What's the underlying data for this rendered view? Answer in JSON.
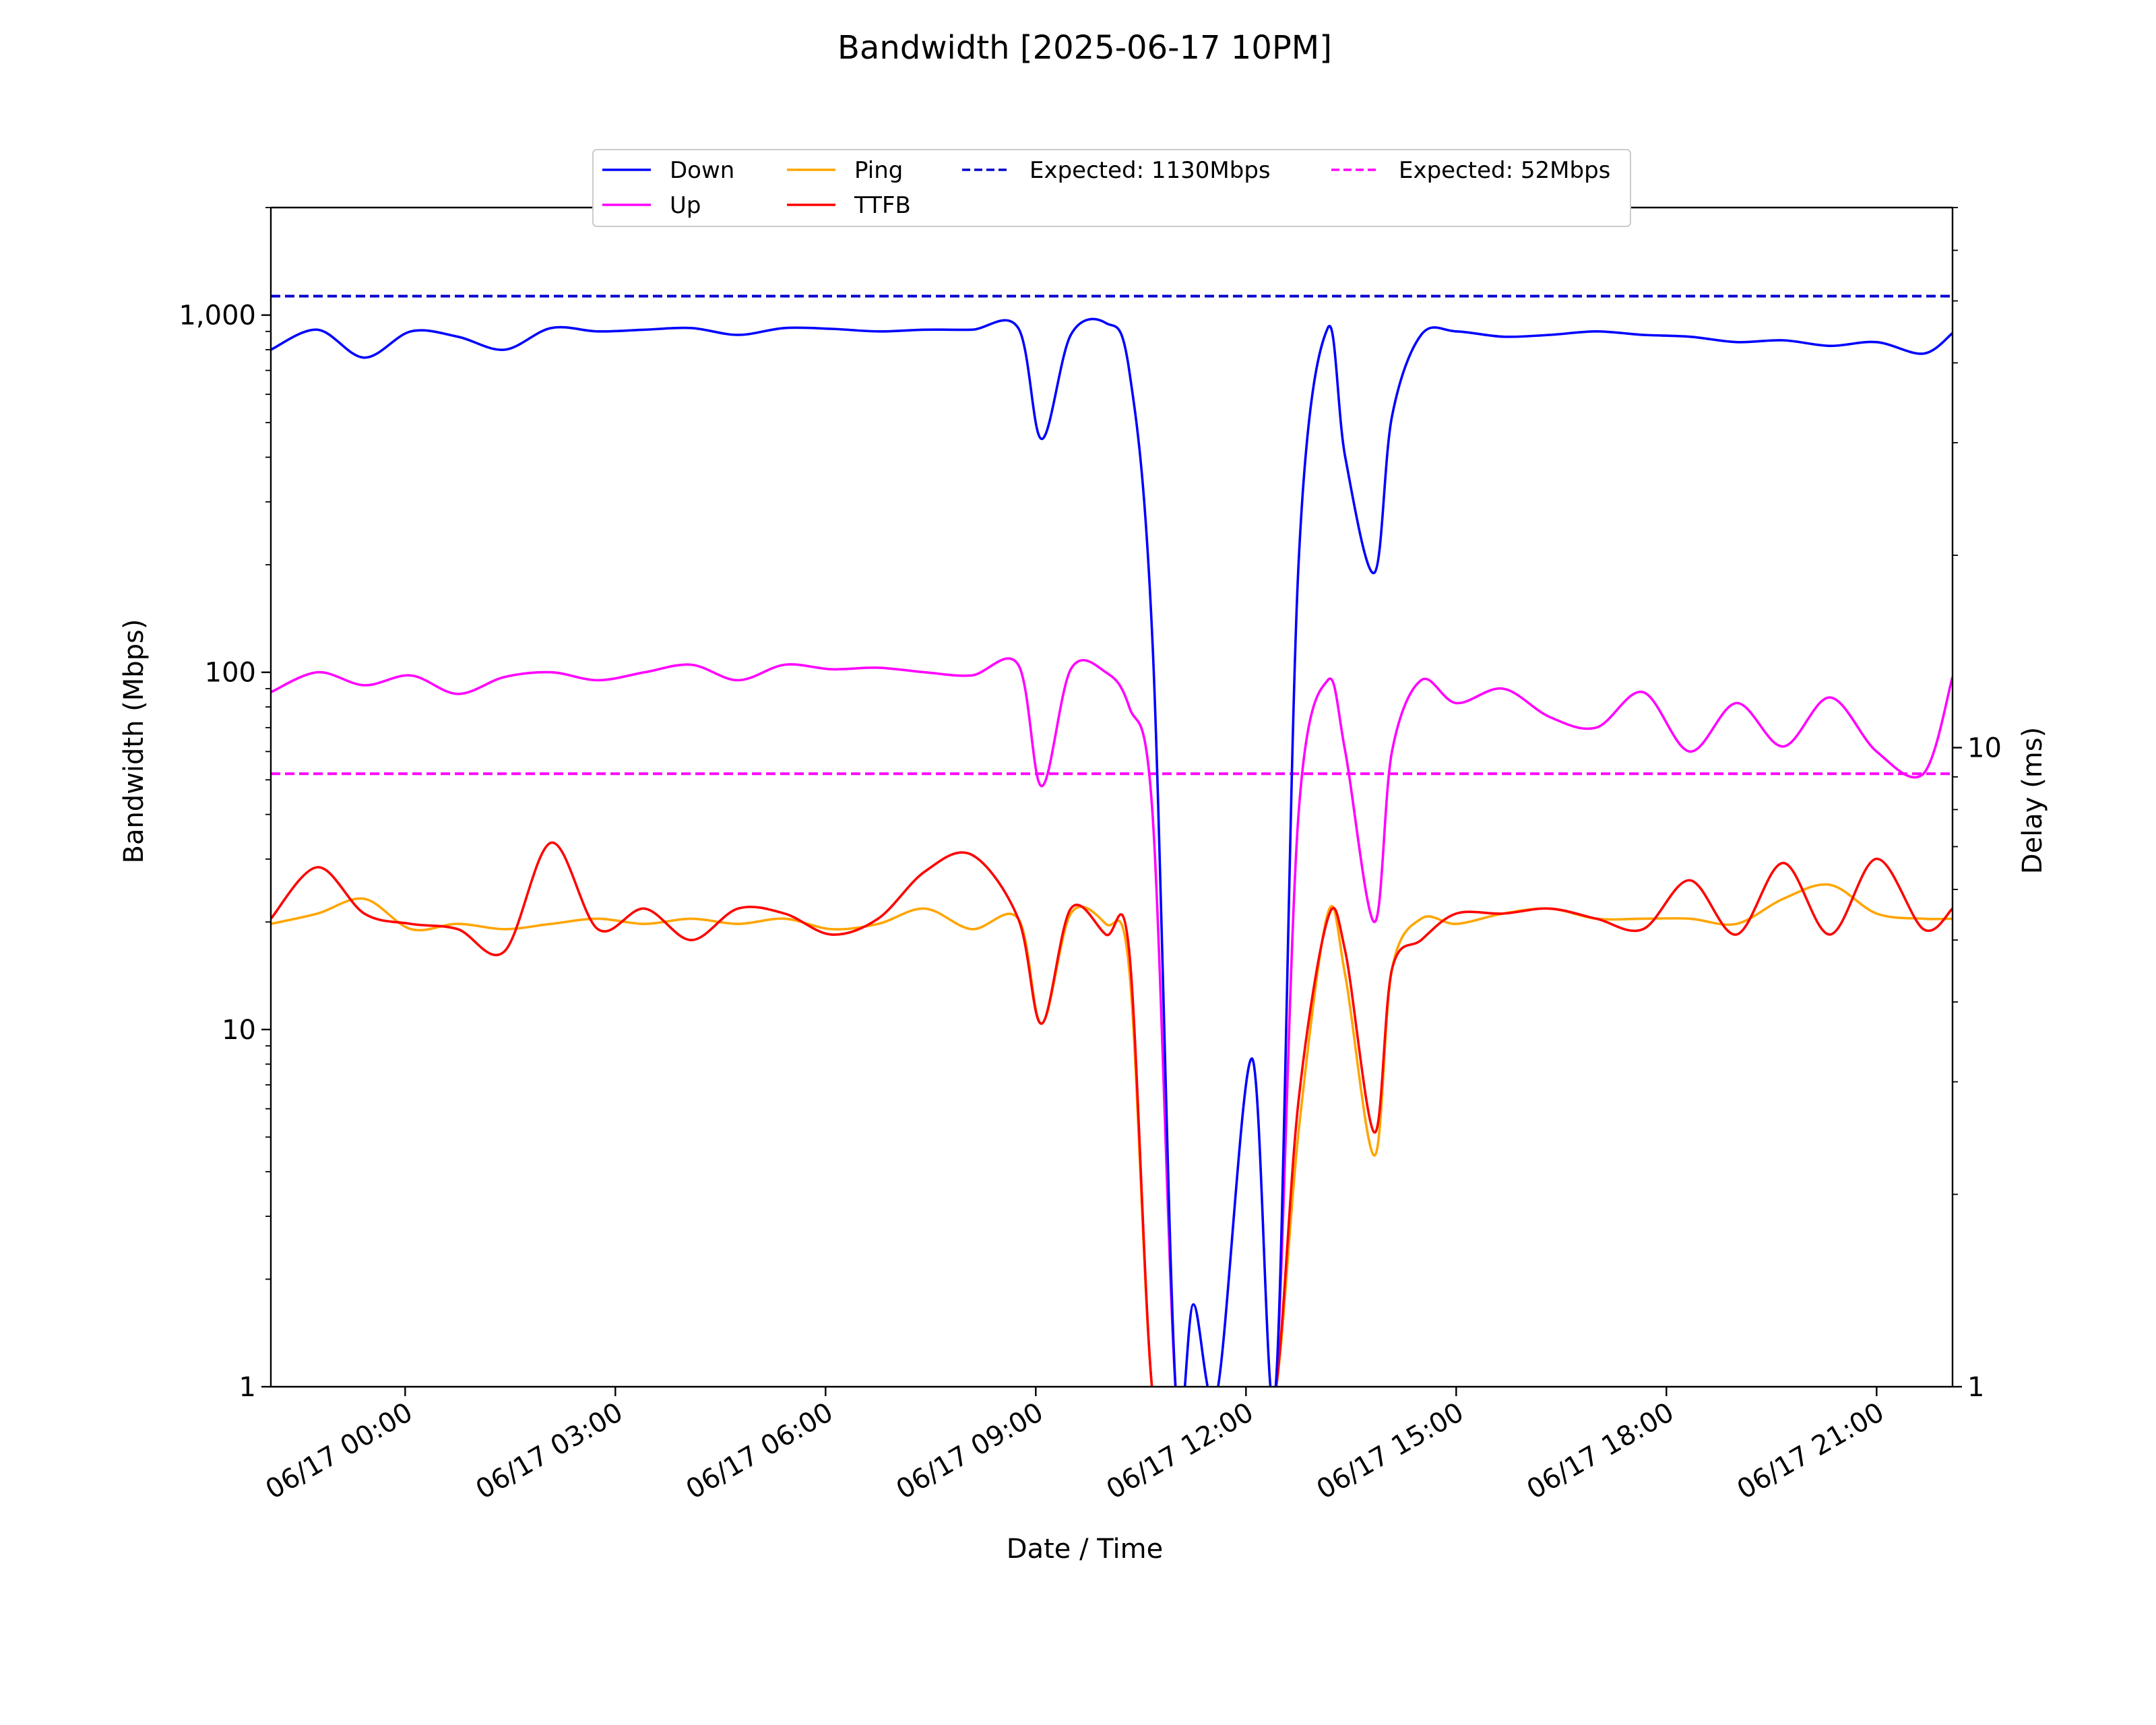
{
  "chart_data": {
    "type": "line",
    "title": "Bandwidth [2025-06-17 10PM]",
    "xlabel": "Date / Time",
    "ylabel": "Bandwidth (Mbps)",
    "y2label": "Delay (ms)",
    "yscale": "log",
    "y2scale": "log",
    "ylim": [
      1,
      2000
    ],
    "y2lim": [
      1,
      70
    ],
    "xlim": [
      "06/16 22:05",
      "06/17 22:05"
    ],
    "grid": false,
    "legend_position": "top-center",
    "x_ticks": [
      "06/17 00:00",
      "06/17 03:00",
      "06/17 06:00",
      "06/17 09:00",
      "06/17 12:00",
      "06/17 15:00",
      "06/17 18:00",
      "06/17 21:00"
    ],
    "y_ticks": [
      "1",
      "10",
      "100",
      "1,000"
    ],
    "y2_ticks": [
      "1",
      "10"
    ],
    "x": [
      "06/16 22:05",
      "06/16 22:45",
      "06/16 23:25",
      "06/17 00:05",
      "06/17 00:45",
      "06/17 01:25",
      "06/17 02:05",
      "06/17 02:45",
      "06/17 03:25",
      "06/17 04:05",
      "06/17 04:45",
      "06/17 05:25",
      "06/17 06:05",
      "06/17 06:45",
      "06/17 07:25",
      "06/17 08:05",
      "06/17 08:45",
      "06/17 09:05",
      "06/17 09:30",
      "06/17 10:00",
      "06/17 10:20",
      "06/17 10:40",
      "06/17 11:00",
      "06/17 11:15",
      "06/17 11:35",
      "06/17 12:05",
      "06/17 12:25",
      "06/17 12:45",
      "06/17 13:10",
      "06/17 13:25",
      "06/17 13:50",
      "06/17 14:05",
      "06/17 14:30",
      "06/17 15:00",
      "06/17 15:40",
      "06/17 16:20",
      "06/17 17:00",
      "06/17 17:40",
      "06/17 18:20",
      "06/17 19:00",
      "06/17 19:40",
      "06/17 20:20",
      "06/17 21:00",
      "06/17 21:40",
      "06/17 22:05"
    ],
    "series": [
      {
        "name": "Down",
        "axis": "left",
        "color": "#0000ff",
        "values": [
          800,
          910,
          760,
          900,
          870,
          800,
          920,
          900,
          910,
          920,
          880,
          920,
          915,
          900,
          910,
          910,
          920,
          450,
          880,
          950,
          700,
          120,
          1,
          1.7,
          1,
          8.3,
          1,
          200,
          920,
          400,
          190,
          520,
          880,
          900,
          870,
          880,
          900,
          880,
          870,
          840,
          850,
          820,
          840,
          780,
          890
        ]
      },
      {
        "name": "Up",
        "axis": "left",
        "color": "#ff00ff",
        "values": [
          88,
          100,
          92,
          98,
          87,
          97,
          100,
          95,
          100,
          105,
          95,
          105,
          102,
          103,
          100,
          98,
          105,
          48,
          102,
          100,
          80,
          40,
          1,
          1,
          1,
          1,
          1,
          40,
          95,
          60,
          20,
          60,
          95,
          82,
          90,
          75,
          70,
          88,
          60,
          82,
          62,
          85,
          60,
          52,
          97
        ]
      },
      {
        "name": "Ping",
        "axis": "right",
        "color": "#ffa500",
        "values": [
          5.3,
          5.5,
          5.8,
          5.2,
          5.3,
          5.2,
          5.3,
          5.4,
          5.3,
          5.4,
          5.3,
          5.4,
          5.2,
          5.3,
          5.6,
          5.2,
          5.4,
          3.7,
          5.5,
          5.3,
          4.5,
          1,
          1,
          1,
          1,
          1,
          1,
          2.5,
          5.5,
          4.4,
          2.3,
          4.5,
          5.4,
          5.3,
          5.5,
          5.6,
          5.4,
          5.4,
          5.4,
          5.3,
          5.8,
          6.1,
          5.5,
          5.4,
          5.4
        ]
      },
      {
        "name": "TTFB",
        "axis": "right",
        "color": "#ff0000",
        "values": [
          5.4,
          6.5,
          5.5,
          5.3,
          5.2,
          4.8,
          7.1,
          5.2,
          5.6,
          5.0,
          5.6,
          5.5,
          5.1,
          5.4,
          6.4,
          6.8,
          5.4,
          3.7,
          5.6,
          5.1,
          4.8,
          1,
          1,
          1,
          1,
          1,
          1,
          2.8,
          5.4,
          4.8,
          2.5,
          4.5,
          5.0,
          5.5,
          5.5,
          5.6,
          5.4,
          5.2,
          6.2,
          5.1,
          6.6,
          5.1,
          6.7,
          5.2,
          5.6
        ]
      }
    ],
    "reference_lines": [
      {
        "name": "Expected: 1130Mbps",
        "axis": "left",
        "value": 1130,
        "style": "dashed",
        "color": "#0000cc"
      },
      {
        "name": "Expected: 52Mbps",
        "axis": "left",
        "value": 52,
        "style": "dashed",
        "color": "#ff00ff"
      }
    ]
  }
}
